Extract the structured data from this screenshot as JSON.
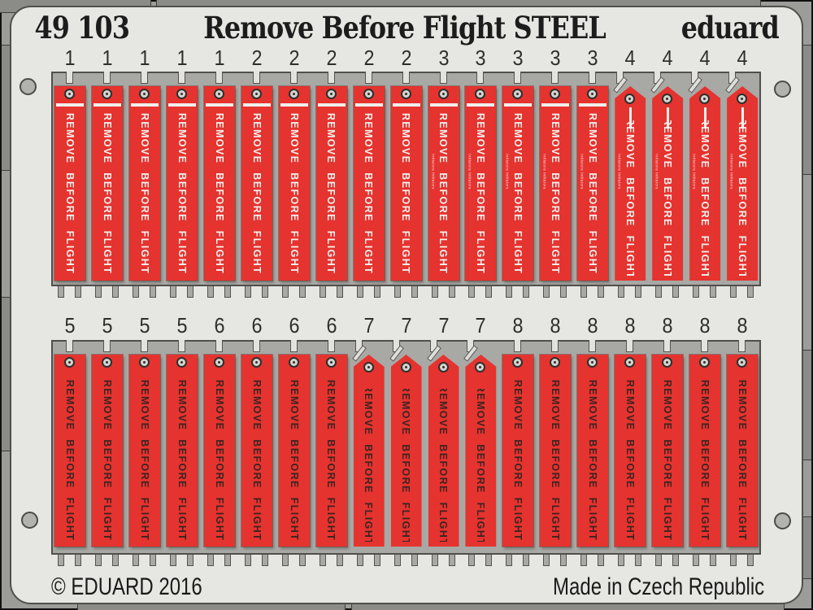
{
  "header": {
    "catalog_number": "49 103",
    "product_title": "Remove Before Flight STEEL",
    "brand": "eduard"
  },
  "footer": {
    "copyright": "© EDUARD 2016",
    "origin": "Made in Czech Republic"
  },
  "flag_label": "REMOVE BEFORE FLIGHT",
  "micro_label": "Initiators Initiators",
  "bands": [
    {
      "id": "top",
      "flags": [
        "1",
        "1",
        "1",
        "1",
        "1",
        "2",
        "2",
        "2",
        "2",
        "2",
        "3",
        "3",
        "3",
        "3",
        "3",
        "4",
        "4",
        "4",
        "4"
      ]
    },
    {
      "id": "bottom",
      "flags": [
        "5",
        "5",
        "5",
        "5",
        "6",
        "6",
        "6",
        "6",
        "7",
        "7",
        "7",
        "7",
        "8",
        "8",
        "8",
        "8",
        "8",
        "8",
        "8"
      ]
    }
  ],
  "part_styles": {
    "1": {
      "shape": "flat",
      "white_stripe": true,
      "ink": "light",
      "micro_text": false,
      "fold_line": false
    },
    "2": {
      "shape": "flat",
      "white_stripe": true,
      "ink": "light",
      "micro_text": false,
      "fold_line": false
    },
    "3": {
      "shape": "flat",
      "white_stripe": true,
      "ink": "light",
      "micro_text": true,
      "fold_line": false
    },
    "4": {
      "shape": "pennant",
      "white_stripe": false,
      "ink": "light",
      "micro_text": true,
      "fold_line": true
    },
    "5": {
      "shape": "flat",
      "white_stripe": false,
      "ink": "dark",
      "micro_text": false,
      "fold_line": false
    },
    "6": {
      "shape": "flat",
      "white_stripe": false,
      "ink": "dark",
      "micro_text": false,
      "fold_line": false
    },
    "7": {
      "shape": "pennant",
      "white_stripe": false,
      "ink": "dark",
      "micro_text": false,
      "fold_line": false
    },
    "8": {
      "shape": "flat",
      "white_stripe": false,
      "ink": "dark",
      "micro_text": false,
      "fold_line": false
    }
  },
  "colors": {
    "flag_red": "#e5332f",
    "sheet_grey": "#a8a8a4",
    "frame_grey": "#e6e6e2",
    "backing_grey": "#9c9c98",
    "outline": "#514f4b",
    "ink_light": "#f4f1ee",
    "ink_dark": "#3b2422",
    "title_text": "#1c1c1c"
  }
}
